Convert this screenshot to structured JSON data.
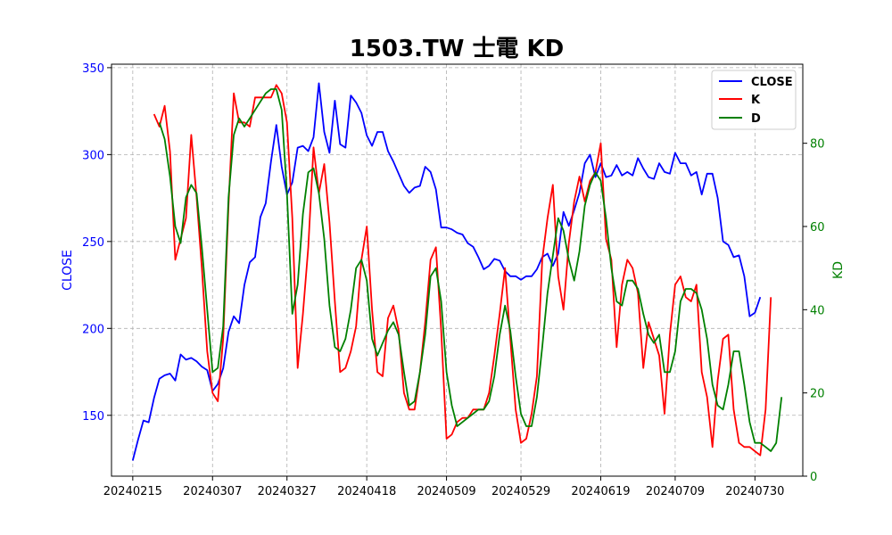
{
  "chart_data": {
    "type": "line",
    "title": "1503.TW 士電 KD",
    "ylabel": "CLOSE",
    "ylabel_right": "KD",
    "colors": {
      "close": "#0000ff",
      "k": "#ff0000",
      "d": "#008000",
      "grid": "#b0b0b0"
    },
    "legend_placement": "top-right",
    "grid": true,
    "x_tick_labels": [
      "20240215",
      "20240307",
      "20240327",
      "20240418",
      "20240509",
      "20240529",
      "20240619",
      "20240709",
      "20240730"
    ],
    "x_tick_indices": [
      0,
      15,
      29,
      44,
      59,
      73,
      88,
      102,
      117
    ],
    "x_range": [
      -4,
      126
    ],
    "y_left": {
      "range": [
        115,
        352
      ],
      "ticks": [
        150,
        200,
        250,
        300,
        350
      ]
    },
    "y_right": {
      "range": [
        0,
        99
      ],
      "ticks": [
        0,
        20,
        40,
        60,
        80
      ]
    },
    "series": [
      {
        "name": "CLOSE",
        "axis": "left",
        "start": 0,
        "values": [
          124,
          136,
          147,
          146,
          160,
          171,
          173,
          174,
          170,
          185,
          182,
          183,
          181,
          178,
          176,
          164,
          168,
          177,
          198,
          207,
          203,
          225,
          238,
          241,
          264,
          272,
          296,
          317,
          293,
          277,
          284,
          304,
          305,
          302,
          310,
          341,
          313,
          301,
          331,
          306,
          304,
          334,
          330,
          324,
          311,
          305,
          313,
          313,
          302,
          296,
          289,
          282,
          278,
          281,
          282,
          293,
          290,
          280,
          258,
          258,
          257,
          255,
          254,
          249,
          247,
          241,
          234,
          236,
          240,
          239,
          233,
          230,
          230,
          228,
          230,
          230,
          234,
          241,
          243,
          236,
          243,
          267,
          259,
          268,
          278,
          295,
          300,
          287,
          295,
          287,
          288,
          294,
          288,
          290,
          288,
          298,
          292,
          287,
          286,
          295,
          290,
          289,
          301,
          295,
          295,
          288,
          290,
          277,
          289,
          289,
          275,
          250,
          248,
          241,
          242,
          230,
          207,
          209,
          218
        ]
      },
      {
        "name": "K",
        "axis": "right",
        "start": 4,
        "values": [
          87,
          84,
          89,
          78,
          52,
          57,
          62,
          82,
          67,
          50,
          30,
          20,
          18,
          33,
          65,
          92,
          85,
          85,
          84,
          91,
          91,
          91,
          91,
          94,
          92,
          85,
          62,
          26,
          39,
          55,
          79,
          68,
          75,
          61,
          42,
          25,
          26,
          30,
          36,
          52,
          60,
          40,
          25,
          24,
          38,
          41,
          35,
          20,
          16,
          16,
          25,
          37,
          52,
          55,
          35,
          9,
          10,
          13,
          14,
          14,
          16,
          16,
          16,
          20,
          29,
          39,
          50,
          33,
          16,
          8,
          9,
          15,
          24,
          52,
          62,
          70,
          48,
          40,
          56,
          66,
          72,
          66,
          71,
          73,
          80,
          57,
          52,
          31,
          46,
          52,
          50,
          44,
          26,
          37,
          33,
          29,
          15,
          34,
          46,
          48,
          43,
          42,
          46,
          25,
          19,
          7,
          23,
          33,
          34,
          16,
          8,
          7,
          7,
          6,
          5,
          16,
          43
        ]
      },
      {
        "name": "D",
        "axis": "right",
        "start": 5,
        "values": [
          85,
          81,
          72,
          60,
          56,
          67,
          70,
          68,
          55,
          40,
          25,
          26,
          36,
          67,
          82,
          86,
          84,
          86,
          88,
          90,
          92,
          93,
          93,
          88,
          68,
          39,
          46,
          63,
          73,
          74,
          68,
          57,
          41,
          31,
          30,
          33,
          40,
          50,
          52,
          47,
          33,
          29,
          32,
          35,
          37,
          34,
          25,
          17,
          18,
          25,
          34,
          48,
          50,
          42,
          25,
          17,
          12,
          13,
          14,
          15,
          16,
          16,
          18,
          24,
          34,
          41,
          35,
          24,
          15,
          12,
          12,
          19,
          31,
          44,
          53,
          62,
          59,
          52,
          47,
          54,
          65,
          70,
          73,
          71,
          62,
          50,
          42,
          41,
          47,
          47,
          45,
          39,
          34,
          32,
          34,
          25,
          25,
          30,
          42,
          45,
          45,
          44,
          40,
          33,
          22,
          17,
          16,
          22,
          30,
          30,
          22,
          13,
          8,
          8,
          7,
          6,
          8,
          19
        ]
      }
    ]
  }
}
